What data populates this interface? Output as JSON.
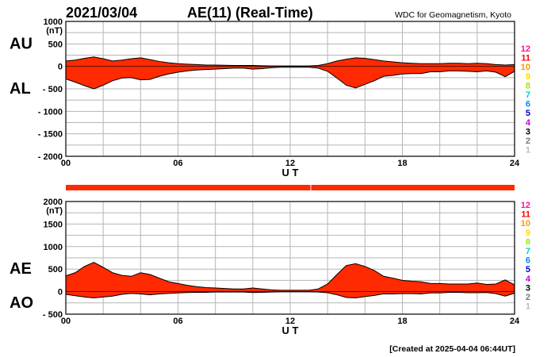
{
  "header": {
    "date": "2021/03/04",
    "title": "AE(11) (Real-Time)",
    "source": "WDC for Geomagnetism, Kyoto"
  },
  "footer": {
    "created": "[Created at 2025-04-04 06:44UT]"
  },
  "chart_data": [
    {
      "type": "area",
      "panel": "upper",
      "unit_label": "(nT)",
      "side_labels": [
        "AU",
        "AL"
      ],
      "xlabel": "U T",
      "xlim": [
        0,
        24
      ],
      "ylim": [
        -2000,
        1000
      ],
      "x_ticks": [
        "00",
        "06",
        "12",
        "18",
        "24"
      ],
      "y_ticks": [
        "1000",
        "500",
        "0",
        "- 500",
        "- 1000",
        "- 1500",
        "- 2000"
      ],
      "y_tick_values": [
        1000,
        500,
        0,
        -500,
        -1000,
        -1500,
        -2000
      ],
      "grid": true,
      "fill_color": "#ff2a00",
      "x": [
        0,
        0.5,
        1,
        1.5,
        2,
        2.5,
        3,
        3.5,
        4,
        4.5,
        5,
        5.5,
        6,
        6.5,
        7,
        7.5,
        8,
        8.5,
        9,
        9.5,
        10,
        10.5,
        11,
        11.5,
        12,
        12.5,
        13,
        13.5,
        14,
        14.5,
        15,
        15.5,
        16,
        16.5,
        17,
        17.5,
        18,
        18.5,
        19,
        19.5,
        20,
        20.5,
        21,
        21.5,
        22,
        22.5,
        23,
        23.5,
        24
      ],
      "series": [
        {
          "name": "AU",
          "values": [
            120,
            140,
            180,
            210,
            170,
            120,
            140,
            170,
            190,
            150,
            110,
            80,
            60,
            50,
            40,
            30,
            30,
            25,
            20,
            20,
            20,
            15,
            10,
            10,
            10,
            10,
            10,
            20,
            60,
            120,
            160,
            190,
            180,
            150,
            120,
            100,
            80,
            70,
            60,
            60,
            60,
            70,
            70,
            60,
            70,
            60,
            40,
            30,
            40
          ]
        },
        {
          "name": "AL",
          "values": [
            -280,
            -350,
            -430,
            -500,
            -420,
            -320,
            -260,
            -250,
            -300,
            -290,
            -220,
            -170,
            -130,
            -100,
            -80,
            -70,
            -60,
            -50,
            -40,
            -40,
            -60,
            -50,
            -30,
            -20,
            -20,
            -20,
            -20,
            -40,
            -110,
            -260,
            -420,
            -480,
            -400,
            -320,
            -220,
            -200,
            -170,
            -160,
            -160,
            -120,
            -120,
            -100,
            -100,
            -110,
            -120,
            -100,
            -130,
            -230,
            -110
          ]
        }
      ]
    },
    {
      "type": "area",
      "panel": "lower",
      "unit_label": "(nT)",
      "side_labels": [
        "AE",
        "AO"
      ],
      "xlabel": "U T",
      "xlim": [
        0,
        24
      ],
      "ylim": [
        -500,
        2000
      ],
      "x_ticks": [
        "00",
        "06",
        "12",
        "18",
        "24"
      ],
      "y_ticks": [
        "2000",
        "1500",
        "1000",
        "500",
        "0",
        "- 500"
      ],
      "y_tick_values": [
        2000,
        1500,
        1000,
        500,
        0,
        -500
      ],
      "grid": true,
      "fill_color": "#ff2a00",
      "x": [
        0,
        0.5,
        1,
        1.5,
        2,
        2.5,
        3,
        3.5,
        4,
        4.5,
        5,
        5.5,
        6,
        6.5,
        7,
        7.5,
        8,
        8.5,
        9,
        9.5,
        10,
        10.5,
        11,
        11.5,
        12,
        12.5,
        13,
        13.5,
        14,
        14.5,
        15,
        15.5,
        16,
        16.5,
        17,
        17.5,
        18,
        18.5,
        19,
        19.5,
        20,
        20.5,
        21,
        21.5,
        22,
        22.5,
        23,
        23.5,
        24
      ],
      "series": [
        {
          "name": "AE",
          "values": [
            350,
            420,
            560,
            650,
            540,
            420,
            360,
            340,
            420,
            380,
            300,
            220,
            180,
            140,
            110,
            90,
            80,
            70,
            60,
            60,
            80,
            60,
            40,
            30,
            30,
            30,
            30,
            60,
            170,
            380,
            580,
            620,
            560,
            470,
            340,
            300,
            250,
            230,
            220,
            180,
            180,
            170,
            170,
            170,
            190,
            160,
            170,
            260,
            150
          ]
        },
        {
          "name": "AO",
          "values": [
            -60,
            -90,
            -120,
            -140,
            -120,
            -100,
            -60,
            -40,
            -50,
            -70,
            -50,
            -40,
            -30,
            -20,
            -15,
            -15,
            -10,
            -10,
            -10,
            -10,
            -20,
            -15,
            -10,
            -5,
            -5,
            -5,
            -5,
            -10,
            -25,
            -70,
            -130,
            -140,
            -110,
            -85,
            -50,
            -50,
            -45,
            -45,
            -50,
            -30,
            -30,
            -15,
            -15,
            -25,
            -25,
            -20,
            -45,
            -100,
            -35
          ]
        }
      ]
    }
  ],
  "legend_colors": [
    {
      "label": "12",
      "color": "#ff1493"
    },
    {
      "label": "11",
      "color": "#ff0000"
    },
    {
      "label": "10",
      "color": "#ff9900"
    },
    {
      "label": "9",
      "color": "#ffd700"
    },
    {
      "label": "8",
      "color": "#99ee00"
    },
    {
      "label": "7",
      "color": "#00cccc"
    },
    {
      "label": "6",
      "color": "#0088ff"
    },
    {
      "label": "5",
      "color": "#0000cc"
    },
    {
      "label": "4",
      "color": "#cc00cc"
    },
    {
      "label": "3",
      "color": "#000000"
    },
    {
      "label": "2",
      "color": "#777777"
    },
    {
      "label": "1",
      "color": "#bbbbbb"
    }
  ],
  "coverage_bar_color": "#ff2a00"
}
